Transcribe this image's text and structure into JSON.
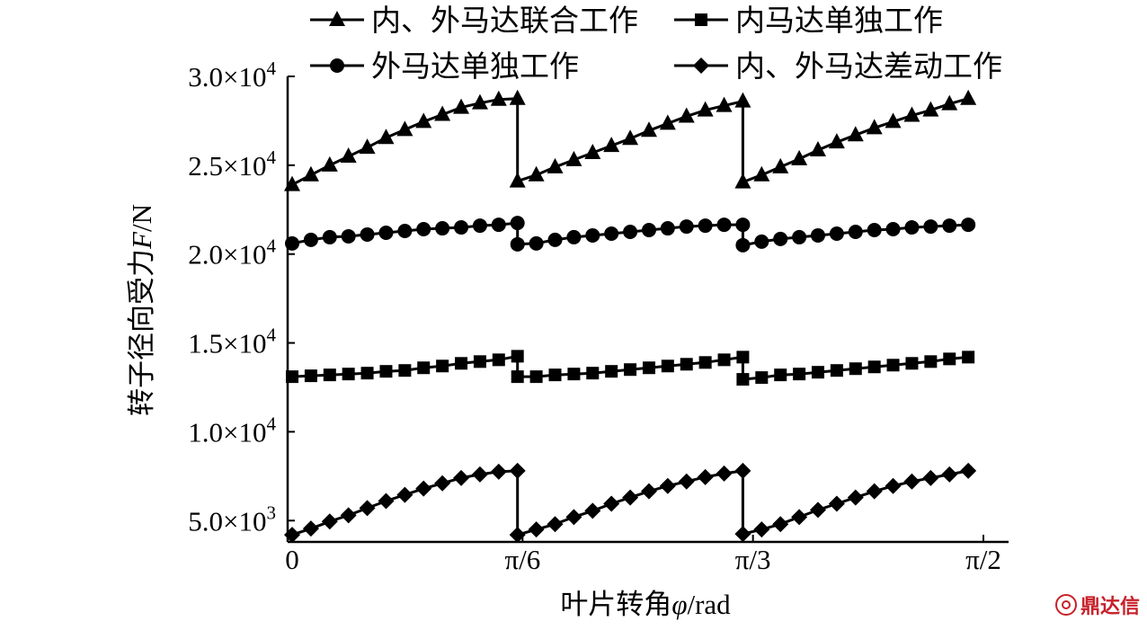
{
  "chart_data": {
    "type": "line",
    "title": "",
    "xlabel_prefix": "叶片转角",
    "xlabel_var": "φ",
    "xlabel_unit": "/rad",
    "ylabel_prefix": "转子径向受力",
    "ylabel_var": "F",
    "ylabel_unit": "/N",
    "xlim": [
      0,
      1.5708
    ],
    "ylim": [
      3800,
      30000
    ],
    "x_ticks": [
      {
        "value": 0,
        "label": "0"
      },
      {
        "value": 0.5236,
        "label": "π/6"
      },
      {
        "value": 1.0472,
        "label": "π/3"
      },
      {
        "value": 1.5708,
        "label": "π/2"
      }
    ],
    "y_ticks": [
      {
        "value": 5000,
        "mantissa": "5.0×10",
        "exp": "3"
      },
      {
        "value": 10000,
        "mantissa": "1.0×10",
        "exp": "4"
      },
      {
        "value": 15000,
        "mantissa": "1.5×10",
        "exp": "4"
      },
      {
        "value": 20000,
        "mantissa": "2.0×10",
        "exp": "4"
      },
      {
        "value": 25000,
        "mantissa": "2.5×10",
        "exp": "4"
      },
      {
        "value": 30000,
        "mantissa": "3.0×10",
        "exp": "4"
      }
    ],
    "legend_placement": "top",
    "grid": false,
    "series": [
      {
        "name": "内、外马达联合工作",
        "marker": "triangle",
        "x": [
          0,
          0.0427,
          0.0854,
          0.128,
          0.1707,
          0.2134,
          0.2561,
          0.2987,
          0.3414,
          0.3841,
          0.4268,
          0.4694,
          0.5121,
          0.5121,
          0.5548,
          0.5975,
          0.6402,
          0.6828,
          0.7255,
          0.7682,
          0.8109,
          0.8535,
          0.8962,
          0.9389,
          0.9816,
          1.0242,
          1.0242,
          1.0669,
          1.1096,
          1.1523,
          1.1949,
          1.2376,
          1.2803,
          1.323,
          1.3656,
          1.4083,
          1.451,
          1.4937,
          1.5364
        ],
        "y": [
          23900,
          24450,
          25000,
          25500,
          26000,
          26550,
          27000,
          27450,
          27850,
          28250,
          28500,
          28700,
          28750,
          24100,
          24450,
          24900,
          25300,
          25700,
          26100,
          26500,
          26950,
          27350,
          27750,
          28100,
          28350,
          28600,
          24050,
          24450,
          24900,
          25350,
          25850,
          26300,
          26700,
          27100,
          27450,
          27800,
          28100,
          28450,
          28750
        ]
      },
      {
        "name": "内马达单独工作",
        "marker": "square",
        "x": [
          0,
          0.0427,
          0.0854,
          0.128,
          0.1707,
          0.2134,
          0.2561,
          0.2987,
          0.3414,
          0.3841,
          0.4268,
          0.4694,
          0.5121,
          0.5121,
          0.5548,
          0.5975,
          0.6402,
          0.6828,
          0.7255,
          0.7682,
          0.8109,
          0.8535,
          0.8962,
          0.9389,
          0.9816,
          1.0242,
          1.0242,
          1.0669,
          1.1096,
          1.1523,
          1.1949,
          1.2376,
          1.2803,
          1.323,
          1.3656,
          1.4083,
          1.451,
          1.4937,
          1.5364
        ],
        "y": [
          13100,
          13150,
          13200,
          13250,
          13300,
          13400,
          13450,
          13600,
          13700,
          13850,
          13950,
          14050,
          14250,
          13100,
          13100,
          13200,
          13250,
          13300,
          13400,
          13500,
          13600,
          13700,
          13800,
          13900,
          14050,
          14200,
          12950,
          13050,
          13200,
          13250,
          13350,
          13450,
          13550,
          13650,
          13750,
          13850,
          13950,
          14100,
          14200
        ]
      },
      {
        "name": "外马达单独工作",
        "marker": "circle",
        "x": [
          0,
          0.0427,
          0.0854,
          0.128,
          0.1707,
          0.2134,
          0.2561,
          0.2987,
          0.3414,
          0.3841,
          0.4268,
          0.4694,
          0.5121,
          0.5121,
          0.5548,
          0.5975,
          0.6402,
          0.6828,
          0.7255,
          0.7682,
          0.8109,
          0.8535,
          0.8962,
          0.9389,
          0.9816,
          1.0242,
          1.0242,
          1.0669,
          1.1096,
          1.1523,
          1.1949,
          1.2376,
          1.2803,
          1.323,
          1.3656,
          1.4083,
          1.451,
          1.4937,
          1.5364
        ],
        "y": [
          20600,
          20800,
          20950,
          21000,
          21100,
          21200,
          21300,
          21400,
          21450,
          21500,
          21600,
          21650,
          21750,
          20550,
          20600,
          20800,
          20950,
          21050,
          21150,
          21250,
          21350,
          21450,
          21550,
          21600,
          21650,
          21650,
          20500,
          20700,
          20850,
          20950,
          21050,
          21150,
          21250,
          21350,
          21400,
          21500,
          21550,
          21600,
          21650
        ]
      },
      {
        "name": "内、外马达差动工作",
        "marker": "diamond",
        "x": [
          0,
          0.0427,
          0.0854,
          0.128,
          0.1707,
          0.2134,
          0.2561,
          0.2987,
          0.3414,
          0.3841,
          0.4268,
          0.4694,
          0.5121,
          0.5121,
          0.5548,
          0.5975,
          0.6402,
          0.6828,
          0.7255,
          0.7682,
          0.8109,
          0.8535,
          0.8962,
          0.9389,
          0.9816,
          1.0242,
          1.0242,
          1.0669,
          1.1096,
          1.1523,
          1.1949,
          1.2376,
          1.2803,
          1.323,
          1.3656,
          1.4083,
          1.451,
          1.4937,
          1.5364
        ],
        "y": [
          4200,
          4550,
          4950,
          5300,
          5700,
          6100,
          6450,
          6800,
          7100,
          7400,
          7600,
          7750,
          7800,
          4200,
          4500,
          4800,
          5200,
          5550,
          5950,
          6300,
          6650,
          6950,
          7200,
          7450,
          7650,
          7800,
          4250,
          4500,
          4800,
          5200,
          5600,
          5950,
          6300,
          6650,
          6950,
          7200,
          7400,
          7600,
          7800
        ]
      }
    ]
  },
  "watermark": {
    "text": "鼎达信",
    "color": "#c8202a"
  }
}
